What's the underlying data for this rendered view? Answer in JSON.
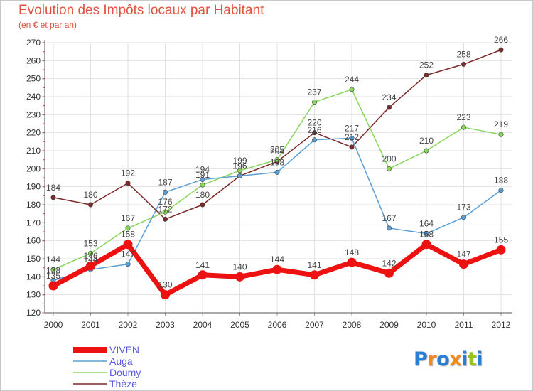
{
  "chart_data": {
    "type": "line",
    "title": "Evolution des Impôts locaux par Habitant",
    "subtitle": "(en € et par an)",
    "xlabel": "",
    "ylabel": "",
    "categories": [
      "2000",
      "2001",
      "2002",
      "2003",
      "2004",
      "2005",
      "2006",
      "2007",
      "2008",
      "2009",
      "2010",
      "2011",
      "2012"
    ],
    "ylim": [
      120,
      270
    ],
    "yticks": [
      120,
      130,
      140,
      150,
      160,
      170,
      180,
      190,
      200,
      210,
      220,
      230,
      240,
      250,
      260,
      270
    ],
    "grid": true,
    "legend": "bottom-left",
    "series": [
      {
        "name": "Thèze",
        "color": "#7b2a2a",
        "values": [
          184,
          180,
          192,
          172,
          180,
          196,
          204,
          220,
          212,
          234,
          252,
          258,
          266
        ]
      },
      {
        "name": "Doumy",
        "color": "#88d65a",
        "values": [
          144,
          153,
          167,
          176,
          191,
          199,
          205,
          237,
          244,
          200,
          210,
          223,
          219
        ]
      },
      {
        "name": "Auga",
        "color": "#5b9fd4",
        "values": [
          138,
          144,
          147,
          187,
          194,
          196,
          198,
          216,
          217,
          167,
          164,
          173,
          188
        ]
      },
      {
        "name": "VIVEN",
        "color": "#ee1111",
        "values": [
          135,
          146,
          158,
          130,
          141,
          140,
          144,
          141,
          148,
          142,
          158,
          147,
          155
        ]
      }
    ],
    "legend_order": [
      "VIVEN",
      "Auga",
      "Doumy",
      "Thèze"
    ]
  },
  "logo": {
    "letters": [
      "P",
      "r",
      "o",
      "x",
      "i",
      "t",
      "i"
    ],
    "colors": [
      "#2a7fd4",
      "#f08a1c",
      "#2a7fd4",
      "#f08a1c",
      "#2a7fd4",
      "#98c21f",
      "#2a7fd4"
    ]
  }
}
